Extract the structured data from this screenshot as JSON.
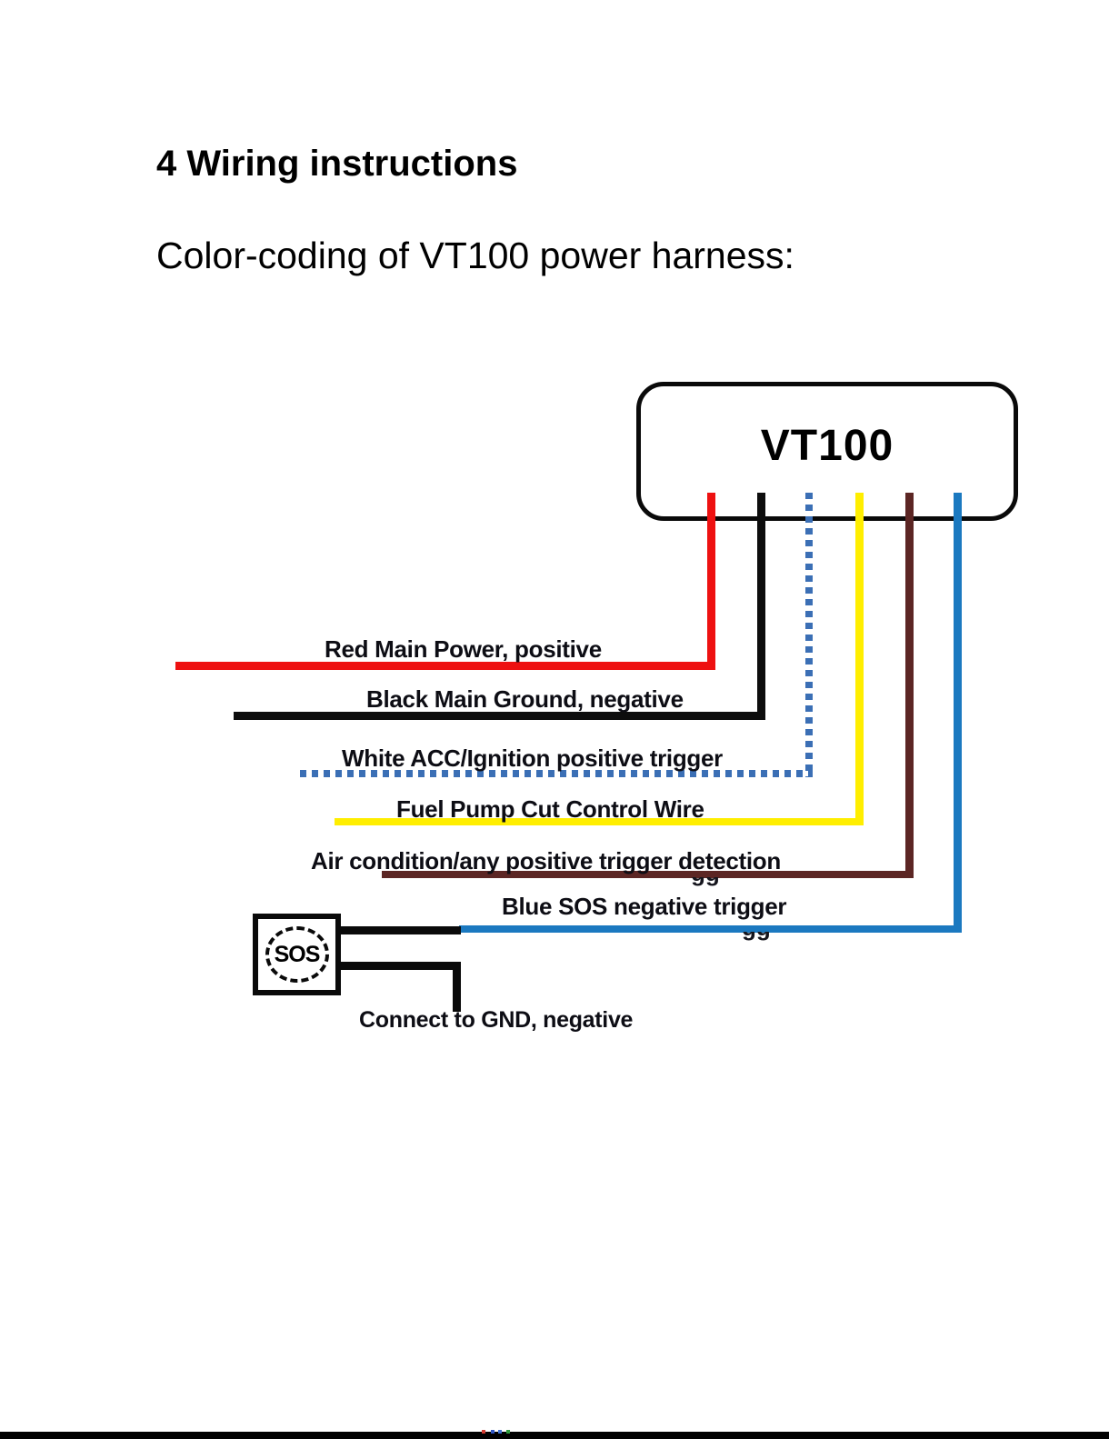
{
  "page": {
    "heading": "4 Wiring instructions",
    "subtitle": "Color-coding of VT100 power harness:"
  },
  "diagram": {
    "device_label": "VT100",
    "sos_button_label": "SOS",
    "gnd_label": "Connect to GND, negative",
    "ghost_text": "gg",
    "wires": [
      {
        "id": "red",
        "label": "Red Main Power, positive",
        "color": "#ee1111",
        "style": "solid"
      },
      {
        "id": "black",
        "label": "Black Main Ground, negative",
        "color": "#0d0d0d",
        "style": "solid"
      },
      {
        "id": "white",
        "label": "White ACC/Ignition positive trigger",
        "color": "#3b6fb5",
        "style": "dotted"
      },
      {
        "id": "yellow",
        "label": "Fuel Pump Cut Control Wire",
        "color": "#ffee00",
        "style": "solid"
      },
      {
        "id": "brown",
        "label": "Air condition/any positive trigger detection",
        "color": "#5c2624",
        "style": "solid"
      },
      {
        "id": "blue",
        "label": "Blue SOS negative trigger",
        "color": "#1b79c0",
        "style": "solid"
      }
    ]
  }
}
